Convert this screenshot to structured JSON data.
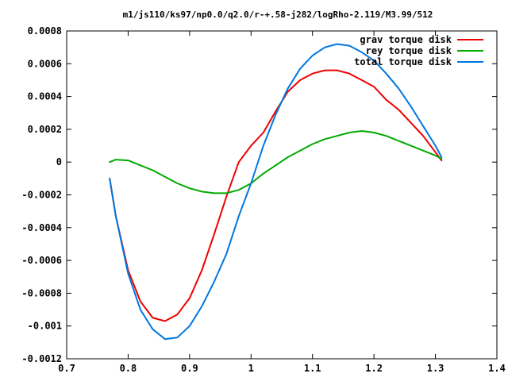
{
  "chart_data": {
    "type": "line",
    "title": "m1/js110/ks97/np0.0/q2.0/r-+.58-j282/logRho-2.119/M3.99/512",
    "xlabel": "",
    "ylabel": "",
    "xlim": [
      0.7,
      1.4
    ],
    "ylim": [
      -0.0012,
      0.0008
    ],
    "x_ticks": [
      "0.7",
      "0.8",
      "0.9",
      "1",
      "1.1",
      "1.2",
      "1.3",
      "1.4"
    ],
    "y_ticks": [
      "-0.0012",
      "-0.001",
      "-0.0008",
      "-0.0006",
      "-0.0004",
      "-0.0002",
      "0",
      "0.0002",
      "0.0004",
      "0.0006",
      "0.0008"
    ],
    "grid": false,
    "legend_position": "top-right",
    "series": [
      {
        "name": "grav torque disk",
        "color": "#ee0000",
        "x": [
          0.77,
          0.78,
          0.8,
          0.82,
          0.84,
          0.86,
          0.88,
          0.9,
          0.92,
          0.94,
          0.96,
          0.98,
          1.0,
          1.02,
          1.04,
          1.06,
          1.08,
          1.1,
          1.12,
          1.14,
          1.16,
          1.18,
          1.2,
          1.22,
          1.24,
          1.26,
          1.28,
          1.3,
          1.31
        ],
        "y": [
          -0.0001,
          -0.00033,
          -0.00066,
          -0.00085,
          -0.00095,
          -0.00097,
          -0.00093,
          -0.00083,
          -0.00066,
          -0.00044,
          -0.00021,
          0.0,
          0.0001,
          0.00018,
          0.00031,
          0.00043,
          0.0005,
          0.00054,
          0.00056,
          0.00056,
          0.00054,
          0.0005,
          0.00046,
          0.00038,
          0.00032,
          0.00024,
          0.00016,
          6e-05,
          1e-05
        ]
      },
      {
        "name": "rey torque disk",
        "color": "#00aa00",
        "x": [
          0.77,
          0.78,
          0.8,
          0.82,
          0.84,
          0.86,
          0.88,
          0.9,
          0.92,
          0.94,
          0.96,
          0.98,
          1.0,
          1.02,
          1.04,
          1.06,
          1.08,
          1.1,
          1.12,
          1.14,
          1.16,
          1.18,
          1.2,
          1.22,
          1.24,
          1.26,
          1.28,
          1.3,
          1.31
        ],
        "y": [
          0.0,
          1.5e-05,
          1e-05,
          -2e-05,
          -5e-05,
          -9e-05,
          -0.00013,
          -0.00016,
          -0.00018,
          -0.00019,
          -0.00019,
          -0.00017,
          -0.00013,
          -7e-05,
          -2e-05,
          3e-05,
          7e-05,
          0.00011,
          0.00014,
          0.00016,
          0.00018,
          0.00019,
          0.00018,
          0.00016,
          0.00013,
          0.0001,
          7e-05,
          4e-05,
          2e-05
        ]
      },
      {
        "name": "total torque disk",
        "color": "#0077dd",
        "x": [
          0.77,
          0.78,
          0.8,
          0.82,
          0.84,
          0.86,
          0.88,
          0.9,
          0.92,
          0.94,
          0.96,
          0.98,
          1.0,
          1.02,
          1.04,
          1.06,
          1.08,
          1.1,
          1.12,
          1.14,
          1.16,
          1.18,
          1.2,
          1.22,
          1.24,
          1.26,
          1.28,
          1.3,
          1.31
        ],
        "y": [
          -0.0001,
          -0.00033,
          -0.00068,
          -0.0009,
          -0.00102,
          -0.00108,
          -0.00107,
          -0.001,
          -0.00088,
          -0.00073,
          -0.00056,
          -0.00033,
          -0.00013,
          0.0001,
          0.00029,
          0.00045,
          0.00057,
          0.00065,
          0.0007,
          0.00072,
          0.00071,
          0.00067,
          0.00062,
          0.00054,
          0.00045,
          0.00034,
          0.00022,
          0.0001,
          3e-05
        ]
      }
    ]
  }
}
